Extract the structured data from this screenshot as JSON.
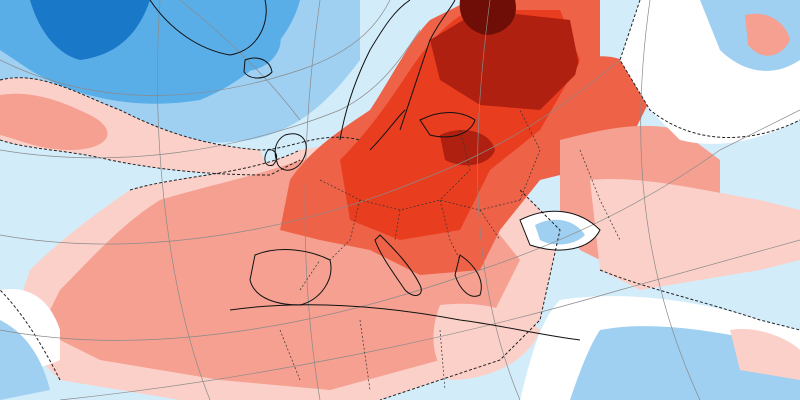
{
  "map": {
    "type": "temperature-anomaly-map",
    "region": "Europe",
    "color_scale": {
      "strong_cold": "#1a78c8",
      "cold": "#5aaee8",
      "cool": "#9fd0f2",
      "slightly_cool": "#d3ecfa",
      "neutral": "#ffffff",
      "slightly_warm": "#fbd0c8",
      "warm": "#f5a090",
      "hot": "#ee6248",
      "very_hot": "#e83d1f",
      "extreme": "#b02010",
      "extreme_core": "#6e0e06"
    },
    "coastline_color": "#111111",
    "contour_style": "dashed",
    "graticule_color": "#8a8a8a"
  }
}
